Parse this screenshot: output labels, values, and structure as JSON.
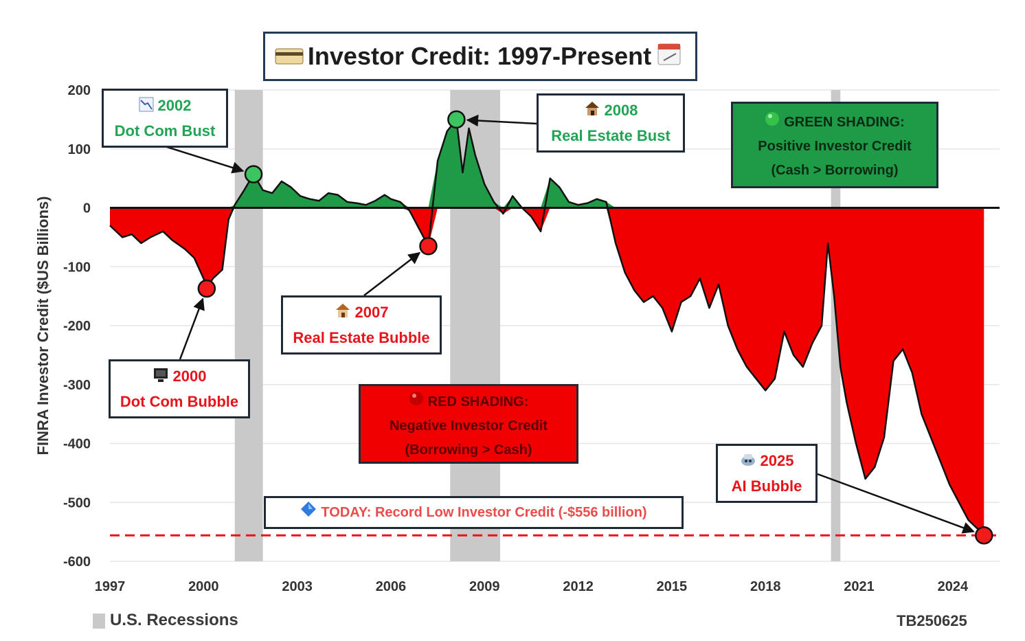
{
  "title": "Investor Credit: 1997-Present",
  "recession_legend": "U.S. Recessions",
  "source_tag": "TB250625",
  "colors": {
    "positive": "#1f9a46",
    "negative": "#f00000",
    "recession": "#c9c9c9",
    "green_text": "#22a455",
    "red_text": "#e8141b"
  },
  "annotations": {
    "dotcom_bust": {
      "year": "2002",
      "label": "Dot Com Bust",
      "icon": "chart-down-icon"
    },
    "dotcom_bubble": {
      "year": "2000",
      "label": "Dot Com Bubble",
      "icon": "computer-icon"
    },
    "re_bubble": {
      "year": "2007",
      "label": "Real Estate Bubble",
      "icon": "house-icon"
    },
    "re_bust": {
      "year": "2008",
      "label": "Real Estate Bust",
      "icon": "house-icon"
    },
    "ai_bubble": {
      "year": "2025",
      "label": "AI Bubble",
      "icon": "robot-icon"
    }
  },
  "legend_green": {
    "line1": "GREEN SHADING:",
    "line2": "Positive Investor Credit",
    "line3": "(Cash > Borrowing)"
  },
  "legend_red": {
    "line1": "RED SHADING:",
    "line2": "Negative Investor Credit",
    "line3": "(Borrowing > Cash)"
  },
  "today": "TODAY: Record Low Investor Credit (-$556 billion)",
  "chart_data": {
    "type": "area",
    "title": "Investor Credit: 1997-Present",
    "ylabel": "FINRA Investor Credit ($US Billions)",
    "xlabel": "",
    "xlim": [
      1997,
      2025.5
    ],
    "ylim": [
      -600,
      200
    ],
    "x_ticks": [
      1997,
      2000,
      2003,
      2006,
      2009,
      2012,
      2015,
      2018,
      2021,
      2024
    ],
    "y_ticks": [
      200,
      100,
      0,
      -100,
      -200,
      -300,
      -400,
      -500,
      -600
    ],
    "grid": true,
    "recessions": [
      [
        2001.0,
        2001.9
      ],
      [
        2007.9,
        2009.5
      ],
      [
        2020.1,
        2020.4
      ]
    ],
    "reference_line": -556,
    "highlight_points": [
      {
        "x": 2000.1,
        "y": -137,
        "label": "2000"
      },
      {
        "x": 2001.6,
        "y": 57,
        "label": "2002"
      },
      {
        "x": 2007.2,
        "y": -65,
        "label": "2007"
      },
      {
        "x": 2008.1,
        "y": 150,
        "label": "2008"
      },
      {
        "x": 2025.0,
        "y": -556,
        "label": "2025"
      }
    ],
    "series": [
      {
        "x": [
          1997.0,
          1997.4,
          1997.7,
          1998.0,
          1998.3,
          1998.7,
          1999.0,
          1999.4,
          1999.7,
          2000.0,
          2000.1,
          2000.3,
          2000.6,
          2000.8,
          2001.0,
          2001.3,
          2001.6,
          2001.9,
          2002.2,
          2002.5,
          2002.8,
          2003.1,
          2003.4,
          2003.7,
          2004.0,
          2004.3,
          2004.6,
          2004.9,
          2005.2,
          2005.5,
          2005.8,
          2006.0,
          2006.3,
          2006.6,
          2006.9,
          2007.2,
          2007.5,
          2007.8,
          2008.1,
          2008.3,
          2008.5,
          2008.7,
          2009.0,
          2009.3,
          2009.6,
          2009.9,
          2010.2,
          2010.5,
          2010.8,
          2011.1,
          2011.4,
          2011.7,
          2012.0,
          2012.3,
          2012.6,
          2012.9,
          2013.2,
          2013.5,
          2013.8,
          2014.1,
          2014.4,
          2014.7,
          2015.0,
          2015.3,
          2015.6,
          2015.9,
          2016.2,
          2016.5,
          2016.8,
          2017.1,
          2017.4,
          2017.7,
          2018.0,
          2018.3,
          2018.6,
          2018.9,
          2019.2,
          2019.5,
          2019.8,
          2020.0,
          2020.2,
          2020.4,
          2020.6,
          2020.9,
          2021.2,
          2021.5,
          2021.8,
          2022.1,
          2022.4,
          2022.7,
          2023.0,
          2023.3,
          2023.6,
          2023.9,
          2024.2,
          2024.5,
          2024.8,
          2025.0
        ],
        "y": [
          -30,
          -50,
          -45,
          -60,
          -50,
          -40,
          -55,
          -70,
          -85,
          -120,
          -137,
          -120,
          -105,
          -20,
          5,
          30,
          57,
          30,
          25,
          45,
          35,
          20,
          15,
          12,
          25,
          22,
          10,
          8,
          5,
          12,
          22,
          15,
          10,
          -5,
          -35,
          -65,
          80,
          130,
          150,
          60,
          135,
          90,
          40,
          10,
          -10,
          20,
          0,
          -15,
          -40,
          50,
          35,
          10,
          5,
          8,
          15,
          10,
          -60,
          -110,
          -140,
          -160,
          -150,
          -170,
          -210,
          -160,
          -150,
          -120,
          -170,
          -130,
          -200,
          -240,
          -270,
          -290,
          -310,
          -290,
          -210,
          -250,
          -270,
          -230,
          -200,
          -60,
          -150,
          -270,
          -330,
          -400,
          -460,
          -440,
          -390,
          -260,
          -240,
          -280,
          -350,
          -390,
          -430,
          -470,
          -500,
          -530,
          -545,
          -556
        ]
      }
    ]
  }
}
